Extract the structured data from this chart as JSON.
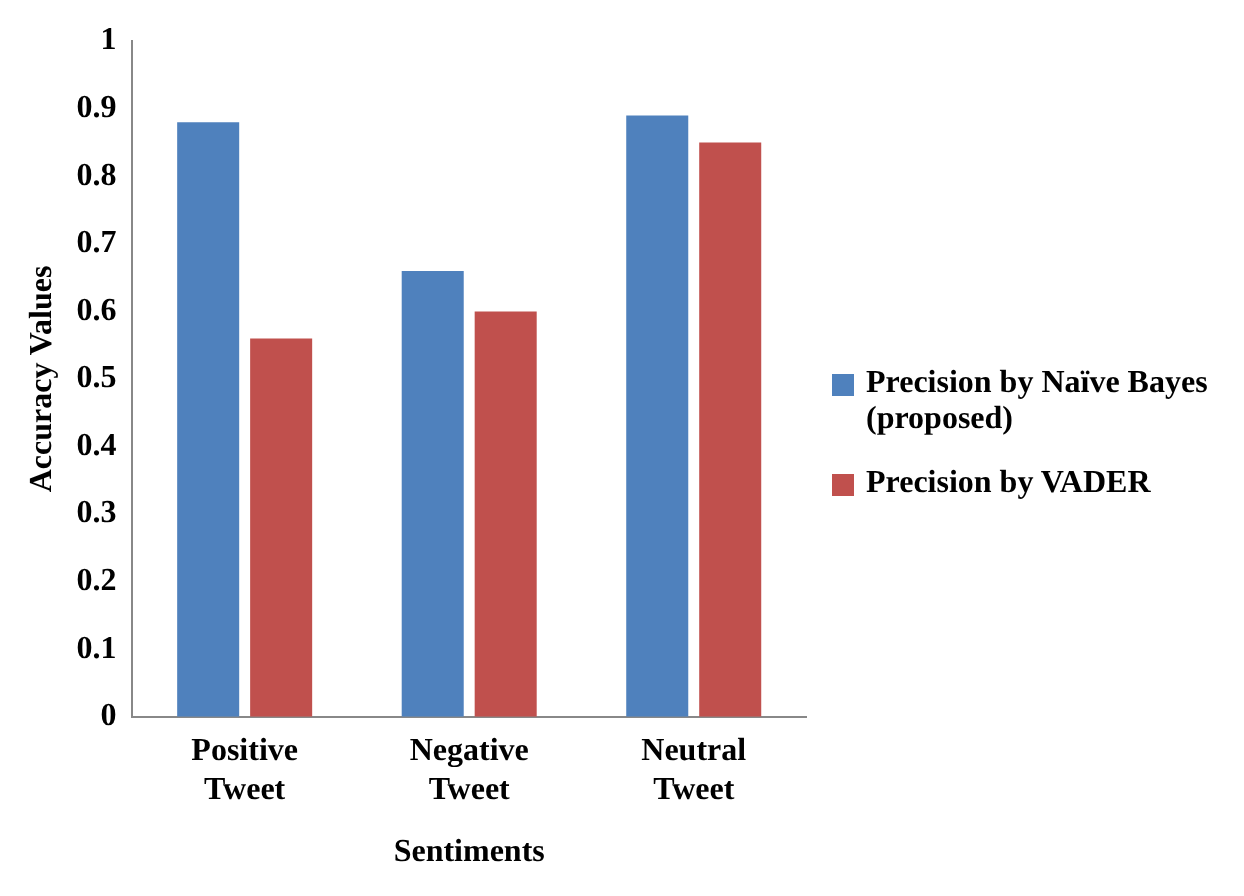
{
  "chart_data": {
    "type": "bar",
    "xlabel": "Sentiments",
    "ylabel": "Accuracy Values",
    "categories": [
      "Positive Tweet",
      "Negative Tweet",
      "Neutral Tweet"
    ],
    "series": [
      {
        "name": "Precision by Naïve Bayes (proposed)",
        "color": "#4f81bd",
        "values": [
          0.88,
          0.66,
          0.89
        ]
      },
      {
        "name": "Precision by VADER",
        "color": "#c0504d",
        "values": [
          0.56,
          0.6,
          0.85
        ]
      }
    ],
    "ylim": [
      0,
      1
    ],
    "yticks": [
      0,
      0.1,
      0.2,
      0.3,
      0.4,
      0.5,
      0.6,
      0.7,
      0.8,
      0.9,
      1
    ],
    "grid": false,
    "legend": "right"
  }
}
